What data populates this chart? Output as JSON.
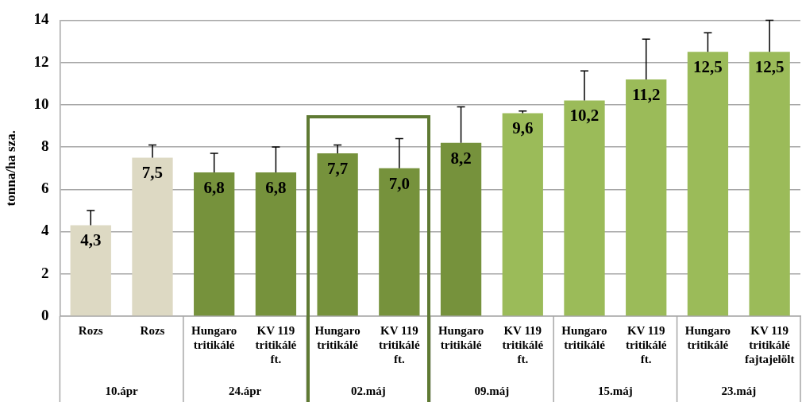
{
  "chart_data": {
    "type": "bar",
    "ylabel": "tonna/ha sza.",
    "categories": [
      "Rozs",
      "Rozs",
      "Hungaro tritikálé",
      "KV 119 tritikálé ft.",
      "Hungaro tritikálé",
      "KV 119 tritikálé ft.",
      "Hungaro tritikálé",
      "KV 119 tritikálé ft.",
      "Hungaro tritikálé",
      "KV 119 tritikálé ft.",
      "Hungaro tritikálé",
      "KV 119 tritikálé fajtajelölt"
    ],
    "values": [
      4.3,
      7.5,
      6.8,
      6.8,
      7.7,
      7.0,
      8.2,
      9.6,
      10.2,
      11.2,
      12.5,
      12.5
    ],
    "colors": [
      "#ddd9c3",
      "#ddd9c3",
      "#76923c",
      "#76923c",
      "#76923c",
      "#76923c",
      "#76923c",
      "#9bbb59",
      "#9bbb59",
      "#9bbb59",
      "#9bbb59",
      "#9bbb59"
    ],
    "errors": [
      [
        4.3,
        5.0
      ],
      [
        7.5,
        8.1
      ],
      [
        6.8,
        7.7
      ],
      [
        6.8,
        8.0
      ],
      [
        7.7,
        8.1
      ],
      [
        7.0,
        8.4
      ],
      [
        8.2,
        9.9
      ],
      [
        9.6,
        9.7
      ],
      [
        10.2,
        11.6
      ],
      [
        11.2,
        13.1
      ],
      [
        12.5,
        13.4
      ],
      [
        12.5,
        14.0
      ]
    ],
    "value_labels": [
      "4,3",
      "7,5",
      "6,8",
      "6,8",
      "7,7",
      "7,0",
      "8,2",
      "9,6",
      "10,2",
      "11,2",
      "12,5",
      "12,5"
    ],
    "ylim": [
      0,
      14
    ],
    "yticks": [
      0,
      2,
      4,
      6,
      8,
      10,
      12,
      14
    ],
    "grid": "y",
    "legend": false,
    "annotations": [
      "10.ápr",
      "24.ápr",
      "02.máj",
      "09.máj",
      "15.máj",
      "23.máj"
    ]
  }
}
